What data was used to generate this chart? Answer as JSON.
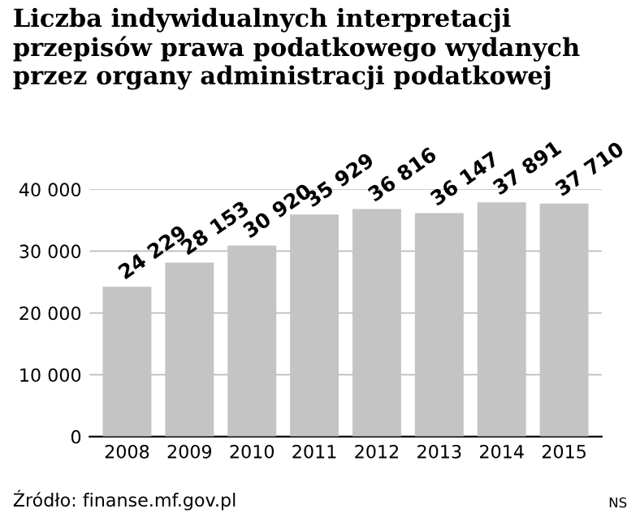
{
  "chart_data": {
    "type": "bar",
    "title": "Liczba indywidualnych interpretacji przepisów prawa podatkowego wydanych przez organy administracji podatkowej",
    "categories": [
      "2008",
      "2009",
      "2010",
      "2011",
      "2012",
      "2013",
      "2014",
      "2015"
    ],
    "values": [
      24229,
      28153,
      30920,
      35929,
      36816,
      36147,
      37891,
      37710
    ],
    "value_labels": [
      "24 229",
      "28 153",
      "30 920",
      "35 929",
      "36 816",
      "36 147",
      "37 891",
      "37 710"
    ],
    "color": "#c4c4c4",
    "ylim": [
      0,
      40000
    ],
    "yticks": [
      {
        "value": 0,
        "label": "0"
      },
      {
        "value": 10000,
        "label": "10 000"
      },
      {
        "value": 20000,
        "label": "20 000"
      },
      {
        "value": 30000,
        "label": "30 000"
      },
      {
        "value": 40000,
        "label": "40 000"
      }
    ],
    "grid": "y",
    "annotations": [
      "Źródło: finanse.mf.gov.pl",
      "NS"
    ]
  }
}
